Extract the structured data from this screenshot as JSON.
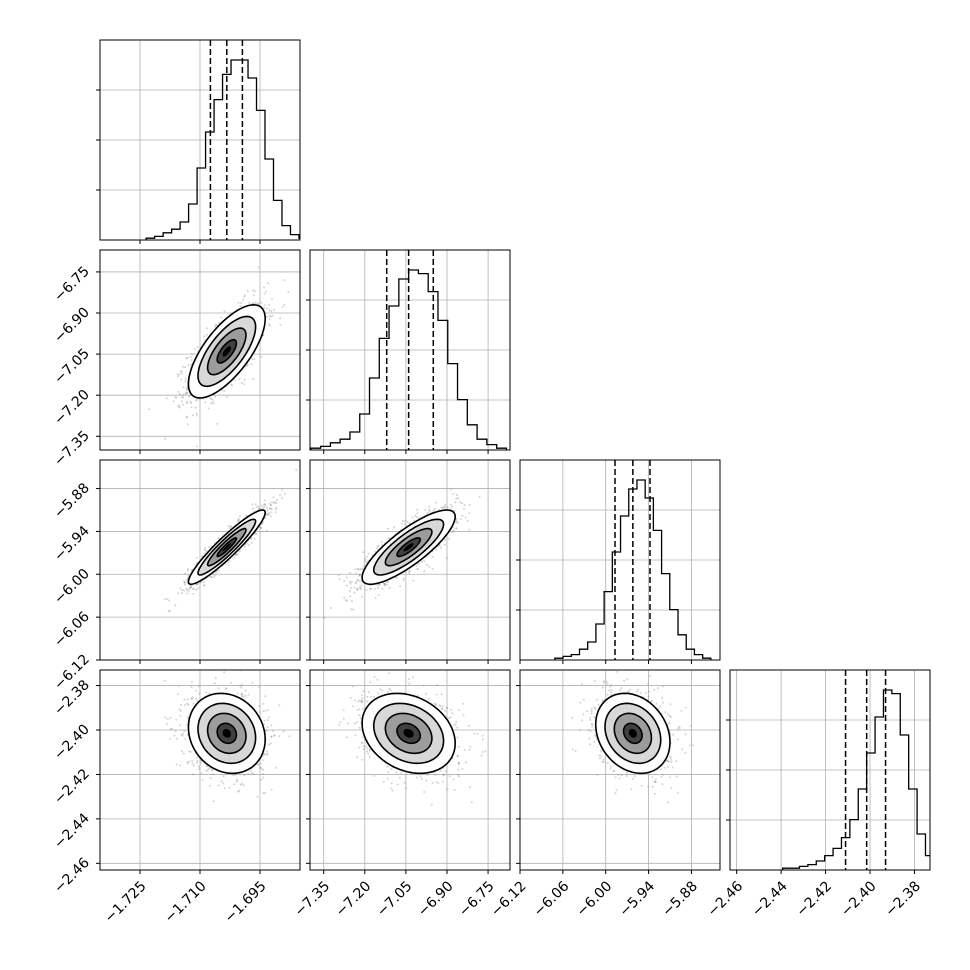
{
  "chart_data": {
    "type": "corner",
    "description_type": "histogram + 2d density contour matrix",
    "grid": true,
    "colors": {
      "line": "#000000",
      "grid": "#b0b0b0",
      "scatter": "#808080"
    },
    "params": [
      {
        "range": [
          -1.735,
          -1.685
        ],
        "ticks": [
          -1.725,
          -1.71,
          -1.695
        ],
        "tick_labels": [
          "−1.725",
          "−1.710",
          "−1.695"
        ],
        "quantiles": [
          -1.7074,
          -1.7033,
          -1.6994
        ],
        "mean": -1.7033,
        "sd": 0.0048
      },
      {
        "range": [
          -7.4,
          -6.67
        ],
        "ticks": [
          -7.35,
          -7.2,
          -7.05,
          -6.9,
          -6.75
        ],
        "tick_labels": [
          "−7.35",
          "−7.20",
          "−7.05",
          "−6.90",
          "−6.75"
        ],
        "quantiles": [
          -7.12,
          -7.04,
          -6.95
        ],
        "mean": -7.04,
        "sd": 0.085
      },
      {
        "range": [
          -6.12,
          -5.84
        ],
        "ticks": [
          -6.12,
          -6.06,
          -6.0,
          -5.94,
          -5.88
        ],
        "tick_labels": [
          "−6.12",
          "−6.06",
          "−6.00",
          "−5.94",
          "−5.88"
        ],
        "quantiles": [
          -5.987,
          -5.962,
          -5.938
        ],
        "mean": -5.962,
        "sd": 0.026
      },
      {
        "range": [
          -2.463,
          -2.373
        ],
        "ticks": [
          -2.46,
          -2.44,
          -2.42,
          -2.4,
          -2.38
        ],
        "tick_labels": [
          "−2.46",
          "−2.44",
          "−2.42",
          "−2.40",
          "−2.38"
        ],
        "quantiles": [
          -2.411,
          -2.4015,
          -2.393
        ],
        "mean": -2.4015,
        "sd": 0.009
      }
    ],
    "correlations": [
      [
        1.0,
        0.7,
        0.93,
        -0.15
      ],
      [
        0.7,
        1.0,
        0.82,
        -0.25
      ],
      [
        0.93,
        0.82,
        1.0,
        -0.22
      ],
      [
        -0.15,
        -0.25,
        -0.22,
        1.0
      ]
    ],
    "histograms": [
      {
        "counts": [
          1,
          2,
          4,
          6,
          10,
          20,
          40,
          60,
          78,
          92,
          100,
          100,
          90,
          72,
          45,
          22,
          8,
          3,
          1
        ]
      },
      {
        "counts": [
          1,
          2,
          4,
          6,
          10,
          20,
          40,
          62,
          80,
          95,
          100,
          98,
          88,
          72,
          48,
          28,
          14,
          6,
          3,
          1
        ]
      },
      {
        "counts": [
          1,
          2,
          3,
          6,
          10,
          20,
          38,
          60,
          80,
          95,
          100,
          90,
          72,
          48,
          28,
          14,
          6,
          3,
          1
        ]
      },
      {
        "counts": [
          1,
          1,
          2,
          3,
          5,
          8,
          12,
          18,
          28,
          45,
          65,
          85,
          100,
          98,
          75,
          45,
          20,
          8,
          3,
          1
        ]
      }
    ]
  }
}
